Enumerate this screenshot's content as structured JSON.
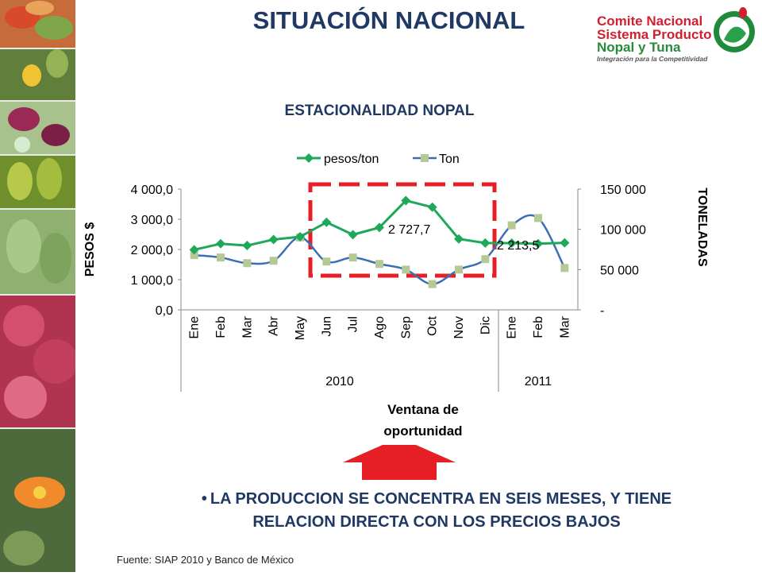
{
  "slide": {
    "title": "SITUACIÓN NACIONAL",
    "logo": {
      "line1": "Comite Nacional",
      "line2": "Sistema Producto",
      "line3": "Nopal y Tuna",
      "tagline": "Integración para la Competitividad"
    },
    "bullet": "LA PRODUCCION SE CONCENTRA EN SEIS MESES, Y TIENE RELACION DIRECTA CON LOS PRECIOS   BAJOS",
    "source": "Fuente: SIAP 2010 y Banco de México"
  },
  "chart_data": {
    "type": "line",
    "title": "ESTACIONALIDAD NOPAL",
    "categories": [
      "Ene",
      "Feb",
      "Mar",
      "Abr",
      "May",
      "Jun",
      "Jul",
      "Ago",
      "Sep",
      "Oct",
      "Nov",
      "Dic",
      "Ene",
      "Feb",
      "Mar"
    ],
    "year_groups": [
      {
        "label": "2010",
        "count": 12
      },
      {
        "label": "2011",
        "count": 3
      }
    ],
    "series": [
      {
        "name": "pesos/ton",
        "axis": "left",
        "color": "#1ea85a",
        "values": [
          1990,
          2190,
          2130,
          2330,
          2420,
          2900,
          2490,
          2727.7,
          3620,
          3400,
          2350,
          2213.5,
          2210,
          2190,
          2220
        ]
      },
      {
        "name": "Ton",
        "axis": "right",
        "color": "#b5c995",
        "values": [
          68000,
          65000,
          58000,
          61000,
          90000,
          60000,
          65000,
          57000,
          50000,
          32000,
          50000,
          63000,
          105000,
          114000,
          52000
        ]
      }
    ],
    "data_labels": [
      "2 727,7",
      "2 213,5"
    ],
    "ylabel": "PESOS $",
    "y2label": "TONELADAS",
    "xlabel": "Ventana de oportunidad",
    "ylim": [
      0,
      4000
    ],
    "y2lim": [
      0,
      150000
    ],
    "yticks": [
      "0,0",
      "1 000,0",
      "2 000,0",
      "3 000,0",
      "4 000,0"
    ],
    "y2ticks": [
      "-",
      "50 000",
      "100 000",
      "150 000"
    ],
    "legend": "top",
    "grid": false
  }
}
